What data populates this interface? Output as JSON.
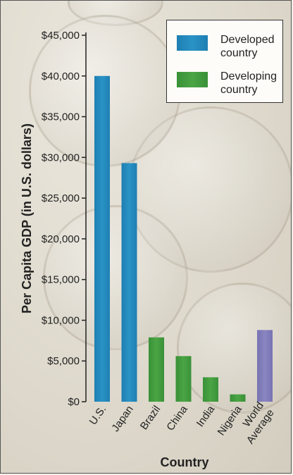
{
  "chart_data": {
    "type": "bar",
    "categories": [
      "U.S.",
      "Japan",
      "Brazil",
      "China",
      "India",
      "Nigeria",
      "World Average"
    ],
    "values": [
      40000,
      29300,
      7900,
      5600,
      3000,
      900,
      8800
    ],
    "groups": [
      "developed",
      "developed",
      "developing",
      "developing",
      "developing",
      "developing",
      "average"
    ],
    "xlabel": "Country",
    "ylabel": "Per Capita GDP (in U.S. dollars)",
    "ylim": [
      0,
      45000
    ],
    "yticks": [
      "$0",
      "$5,000",
      "$10,000",
      "$15,000",
      "$20,000",
      "$25,000",
      "$30,000",
      "$35,000",
      "$40,000",
      "$45,000"
    ],
    "legend_position": "top-right",
    "legend": [
      {
        "label": "Developed country",
        "color": "#2a93c6"
      },
      {
        "label": "Developing country",
        "color": "#4aa544"
      }
    ],
    "colors": {
      "developed": "#2a93c6",
      "developing": "#4aa544",
      "average": "#8a86c2"
    }
  }
}
